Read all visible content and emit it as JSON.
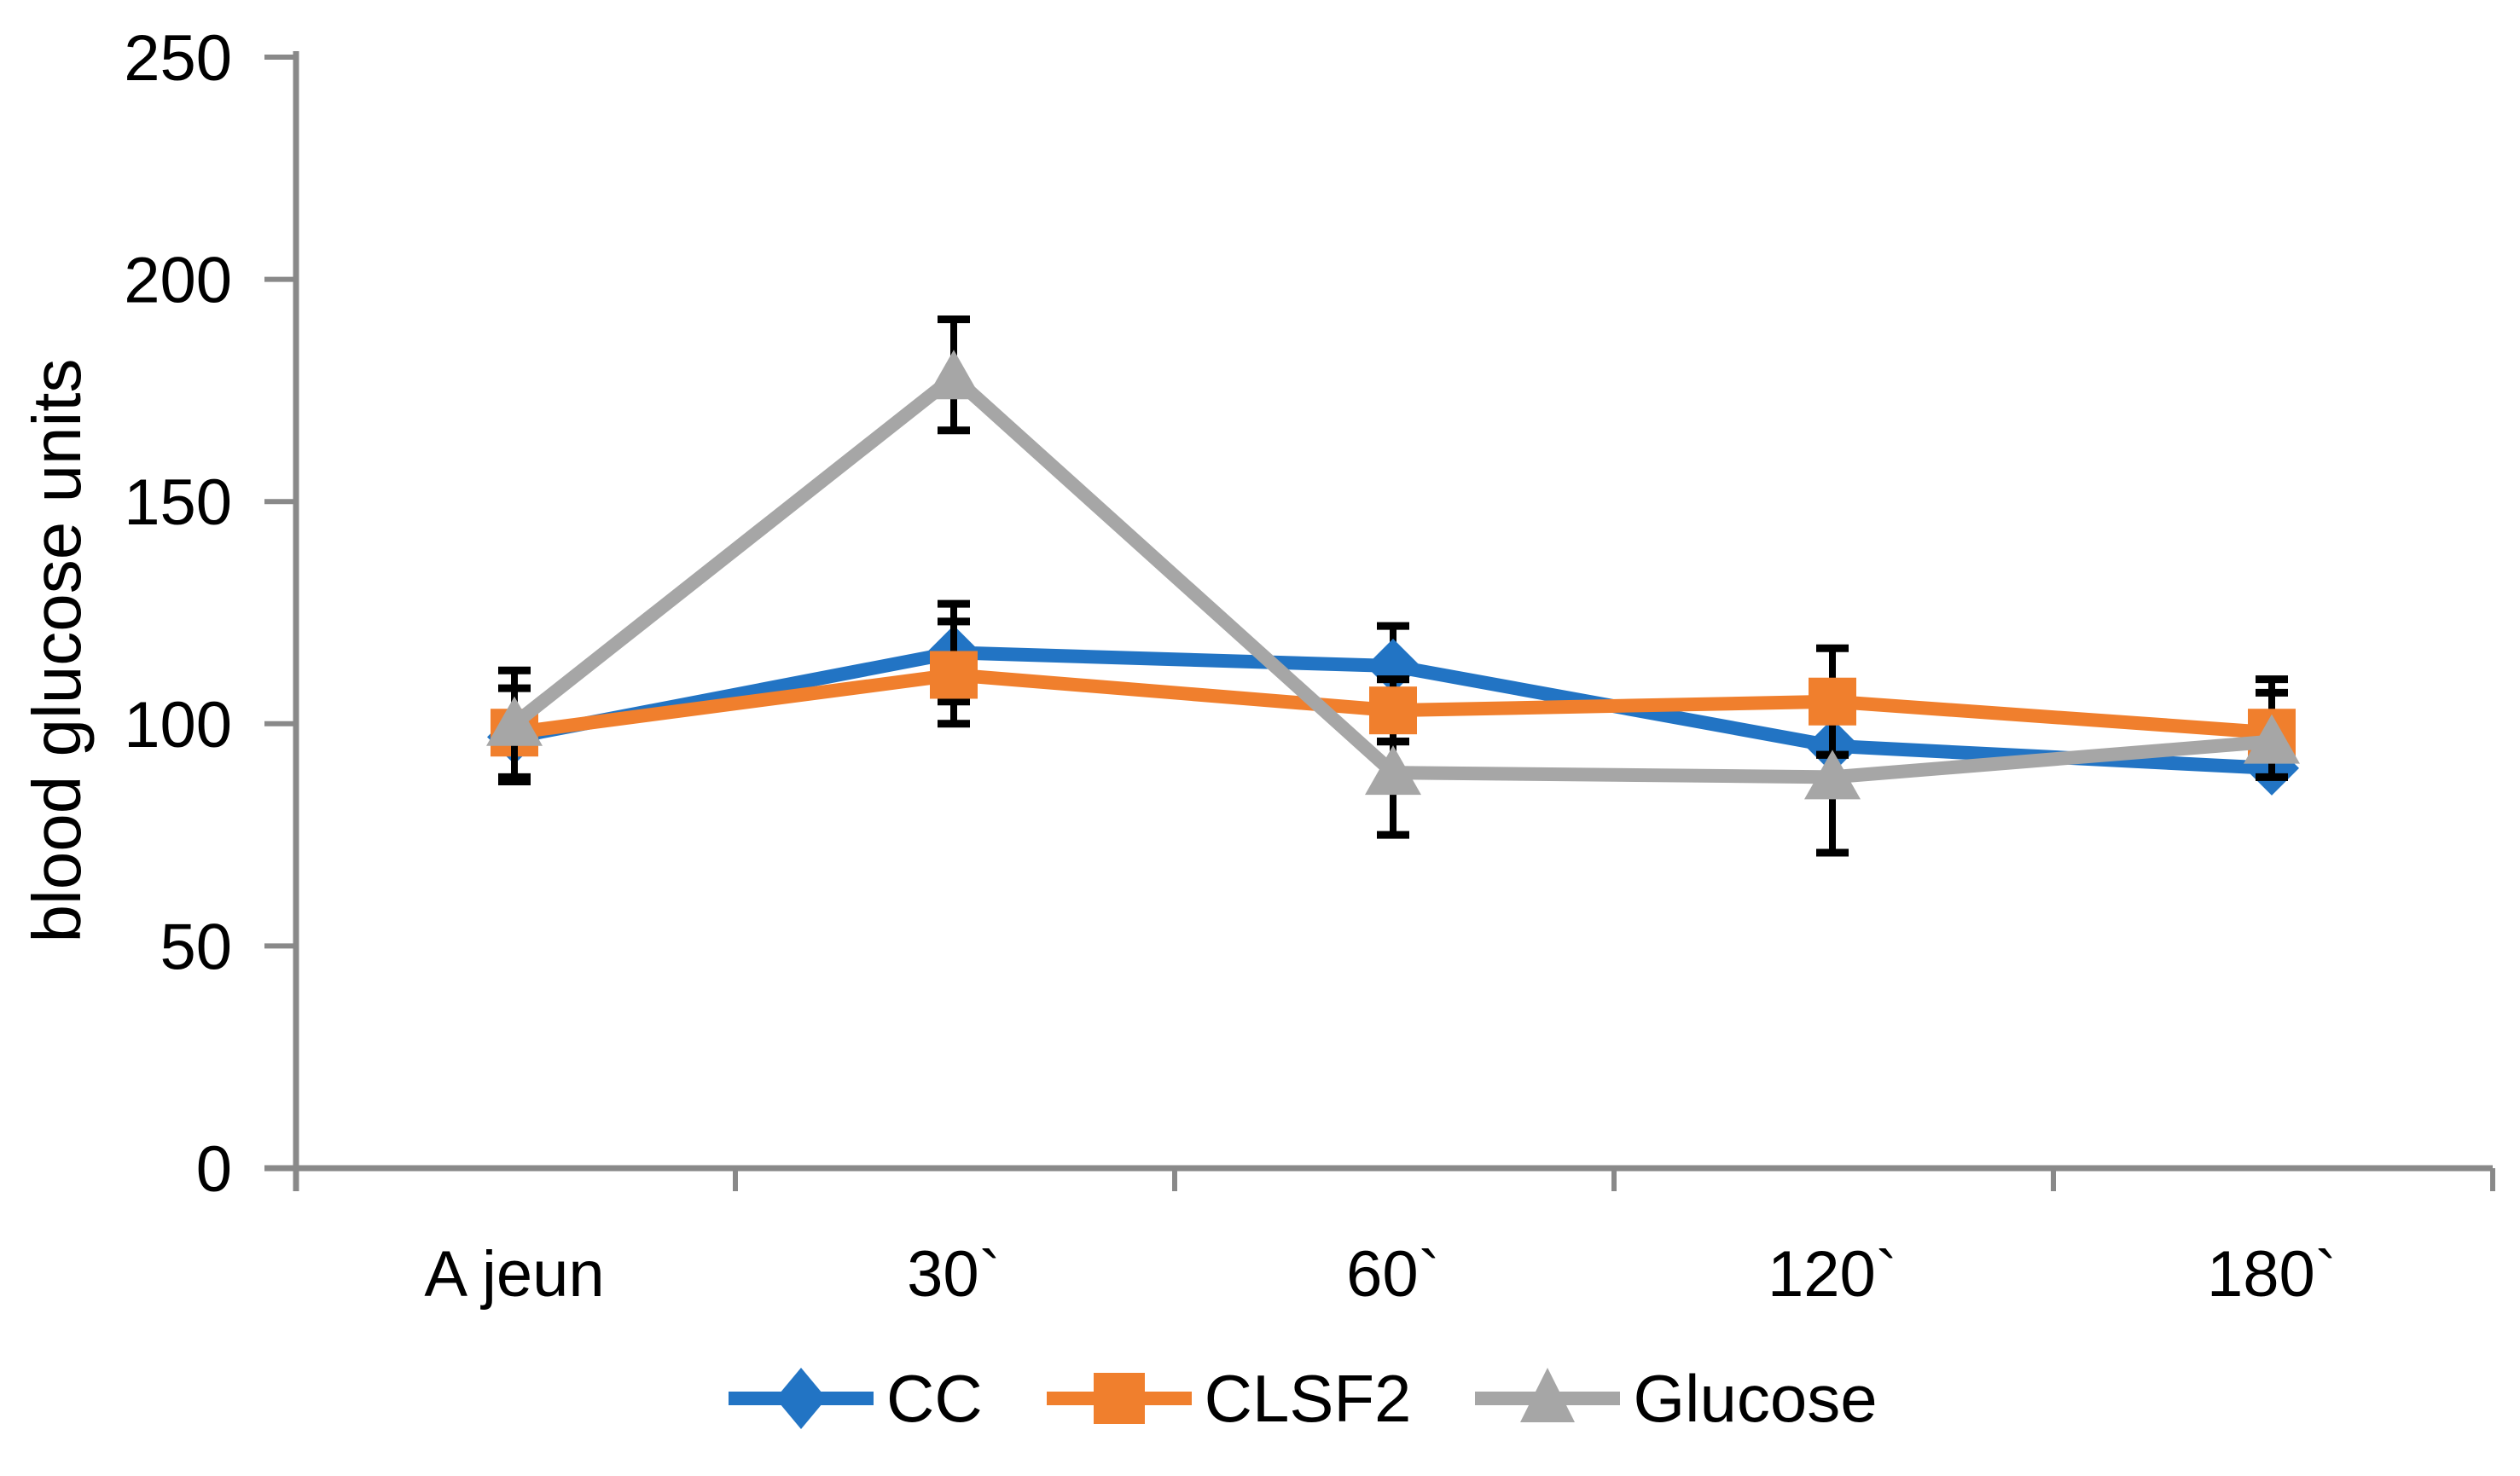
{
  "chart_data": {
    "type": "line",
    "title": "",
    "xlabel": "",
    "ylabel": "blood glucose units",
    "categories": [
      "A jeun",
      "30`",
      "60`",
      "120`",
      "180`"
    ],
    "y_axis": {
      "min": 0,
      "max": 250,
      "step": 50,
      "tick_labels": [
        "0",
        "50",
        "100",
        "150",
        "200",
        "250"
      ]
    },
    "series": [
      {
        "name": "CC",
        "color": "#2274C4",
        "marker": "diamond",
        "values": [
          97,
          116,
          113,
          95,
          90
        ],
        "error_bars": [
          [
            88,
            108
          ],
          [
            105,
            127
          ],
          [
            110,
            122
          ],
          null,
          [
            88,
            107
          ]
        ]
      },
      {
        "name": "CLSF2",
        "color": "#F07F2D",
        "marker": "square",
        "values": [
          98,
          111,
          103,
          105,
          98
        ],
        "error_bars": [
          null,
          [
            100,
            123
          ],
          [
            96,
            110
          ],
          [
            93,
            117
          ],
          [
            88,
            110
          ]
        ]
      },
      {
        "name": "Glucose",
        "color": "#A6A6A6",
        "marker": "triangle",
        "values": [
          100,
          178,
          89,
          88,
          96
        ],
        "error_bars": [
          [
            87,
            112
          ],
          [
            166,
            191
          ],
          [
            75,
            96
          ],
          [
            71,
            93
          ],
          null
        ]
      }
    ],
    "error_bar_color": "#000000",
    "axis_color": "#898989",
    "text_color": "#000000",
    "grid": false,
    "legend": {
      "position": "bottom",
      "items": [
        "CC",
        "CLSF2",
        "Glucose"
      ]
    }
  }
}
